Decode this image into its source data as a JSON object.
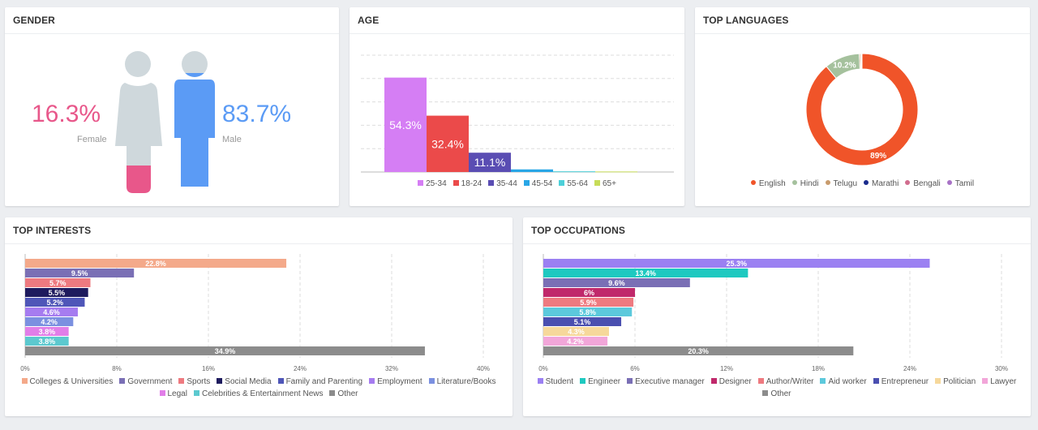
{
  "gender": {
    "title": "GENDER",
    "female": {
      "percent": "16.3%",
      "label": "Female",
      "value": 16.3,
      "color": "#e8578a"
    },
    "male": {
      "percent": "83.7%",
      "label": "Male",
      "value": 83.7,
      "color": "#5b9bf5"
    },
    "figure_color": "#cfd8dc"
  },
  "age": {
    "title": "AGE"
  },
  "languages": {
    "title": "TOP LANGUAGES"
  },
  "interests": {
    "title": "TOP INTERESTS"
  },
  "occupations": {
    "title": "TOP OCCUPATIONS"
  },
  "chart_data": [
    {
      "id": "age",
      "type": "bar",
      "categories": [
        "25-34",
        "18-24",
        "35-44",
        "45-54",
        "55-64",
        "65+"
      ],
      "values": [
        54.3,
        32.4,
        11.1,
        1.5,
        0.4,
        0.3
      ],
      "data_labels": [
        "54.3%",
        "32.4%",
        "11.1%",
        "",
        "",
        ""
      ],
      "colors": [
        "#d57ef4",
        "#eb4a4a",
        "#5a4db3",
        "#29a6e6",
        "#4dd0d9",
        "#c7dc58"
      ],
      "ylim": [
        0,
        70
      ],
      "grid": true
    },
    {
      "id": "languages",
      "type": "pie",
      "categories": [
        "English",
        "Hindi",
        "Telugu",
        "Marathi",
        "Bengali",
        "Tamil"
      ],
      "values": [
        89,
        10.2,
        0.4,
        0.2,
        0.1,
        0.1
      ],
      "data_labels": [
        "89%",
        "10.2%",
        "",
        "",
        "",
        ""
      ],
      "colors": [
        "#f05429",
        "#a5c19d",
        "#c89b6d",
        "#1a2b8c",
        "#d16d8e",
        "#a872c6"
      ],
      "legend": "bottom"
    },
    {
      "id": "interests",
      "type": "bar",
      "orientation": "horizontal",
      "categories": [
        "Colleges & Universities",
        "Government",
        "Sports",
        "Social Media",
        "Family and Parenting",
        "Employment",
        "Literature/Books",
        "Legal",
        "Celebrities & Entertainment News",
        "Other"
      ],
      "values": [
        22.8,
        9.5,
        5.7,
        5.5,
        5.2,
        4.6,
        4.2,
        3.8,
        3.8,
        34.9
      ],
      "data_labels": [
        "22.8%",
        "9.5%",
        "5.7%",
        "5.5%",
        "5.2%",
        "4.6%",
        "4.2%",
        "3.8%",
        "3.8%",
        "34.9%"
      ],
      "colors": [
        "#f4a98a",
        "#7a6fb5",
        "#ee7a80",
        "#1e1b5e",
        "#4f56b8",
        "#a67cf0",
        "#7b90e0",
        "#e17ee8",
        "#5cc9cf",
        "#8c8c8c"
      ],
      "xticks": [
        "0%",
        "8%",
        "16%",
        "24%",
        "32%",
        "40%"
      ],
      "xlim": [
        0,
        40
      ],
      "grid": true,
      "legend": "bottom"
    },
    {
      "id": "occupations",
      "type": "bar",
      "orientation": "horizontal",
      "categories": [
        "Student",
        "Engineer",
        "Executive manager",
        "Designer",
        "Author/Writer",
        "Aid worker",
        "Entrepreneur",
        "Politician",
        "Lawyer",
        "Other"
      ],
      "values": [
        25.3,
        13.4,
        9.6,
        6,
        5.9,
        5.8,
        5.1,
        4.3,
        4.2,
        20.3
      ],
      "data_labels": [
        "25.3%",
        "13.4%",
        "9.6%",
        "6%",
        "5.9%",
        "5.8%",
        "5.1%",
        "4.3%",
        "4.2%",
        "20.3%"
      ],
      "colors": [
        "#9b80f2",
        "#1ec9c0",
        "#7a6fb5",
        "#c0296b",
        "#ee7a80",
        "#5cc9dc",
        "#4a4fb0",
        "#f6d89b",
        "#f2a6d9",
        "#8c8c8c"
      ],
      "xticks": [
        "0%",
        "6%",
        "12%",
        "18%",
        "24%",
        "30%"
      ],
      "xlim": [
        0,
        30
      ],
      "grid": true,
      "legend": "bottom"
    }
  ]
}
